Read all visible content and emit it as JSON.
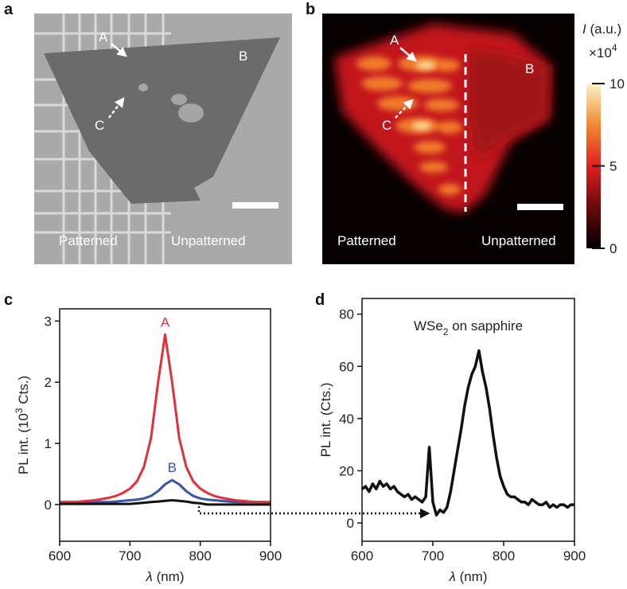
{
  "panel_a": {
    "label": "a",
    "points": [
      "A",
      "B",
      "C"
    ],
    "regions": [
      "Patterned",
      "Unpatterned"
    ]
  },
  "panel_b": {
    "label": "b",
    "points": [
      "A",
      "B",
      "C"
    ],
    "regions": [
      "Patterned",
      "Unpatterned"
    ],
    "colorbar": {
      "title_parts": [
        "I",
        " (a.u.)"
      ],
      "multiplier_parts": [
        "×10",
        "4"
      ],
      "lim": [
        0,
        10
      ],
      "ticks": [
        0,
        5,
        10
      ]
    }
  },
  "chart_data": [
    {
      "type": "line",
      "label": "c",
      "ylabel_parts": [
        "PL int. (10",
        "3",
        " Cts.)"
      ],
      "xlabel_parts": [
        "λ",
        " (nm)"
      ],
      "xlim": [
        600,
        900
      ],
      "xticks": [
        600,
        700,
        800,
        900
      ],
      "ylim": [
        -0.6,
        3.2
      ],
      "yticks": [
        0,
        1,
        2,
        3
      ],
      "x": [
        600,
        610,
        620,
        630,
        640,
        650,
        660,
        670,
        680,
        690,
        700,
        710,
        720,
        730,
        740,
        750,
        760,
        770,
        780,
        790,
        800,
        810,
        820,
        830,
        840,
        850,
        860,
        870,
        880,
        890,
        900
      ],
      "series": [
        {
          "name": "B",
          "color": "#3a55a8",
          "values": [
            0.04,
            0.04,
            0.04,
            0.04,
            0.04,
            0.04,
            0.04,
            0.04,
            0.05,
            0.06,
            0.07,
            0.08,
            0.1,
            0.14,
            0.22,
            0.33,
            0.4,
            0.33,
            0.22,
            0.14,
            0.1,
            0.08,
            0.07,
            0.06,
            0.05,
            0.04,
            0.04,
            0.04,
            0.04,
            0.04,
            0.04
          ]
        },
        {
          "name": "A",
          "color": "#e0303a",
          "values": [
            0.03,
            0.04,
            0.04,
            0.05,
            0.06,
            0.07,
            0.09,
            0.11,
            0.14,
            0.19,
            0.26,
            0.38,
            0.62,
            1.09,
            2.0,
            2.78,
            2.0,
            1.09,
            0.62,
            0.38,
            0.26,
            0.19,
            0.14,
            0.11,
            0.09,
            0.07,
            0.06,
            0.05,
            0.04,
            0.04,
            0.03
          ]
        },
        {
          "color": "#111111",
          "values": [
            0.01,
            0.01,
            0.01,
            0.01,
            0.01,
            0.01,
            0.01,
            0.01,
            0.01,
            0.01,
            0.01,
            0.02,
            0.03,
            0.04,
            0.05,
            0.06,
            0.07,
            0.06,
            0.05,
            0.03,
            0.02,
            0.0,
            0.0,
            0.0,
            0.0,
            0.0,
            0.0,
            0.0,
            0.0,
            0.0,
            0.0
          ]
        }
      ]
    },
    {
      "type": "line",
      "label": "d",
      "title_parts": [
        "WSe",
        "2",
        " on sapphire"
      ],
      "ylabel_parts": [
        "PL int. (Cts.)"
      ],
      "xlabel_parts": [
        "λ",
        " (nm)"
      ],
      "xlim": [
        600,
        900
      ],
      "xticks": [
        600,
        700,
        800,
        900
      ],
      "ylim": [
        -7,
        86
      ],
      "yticks": [
        0,
        20,
        40,
        60,
        80
      ],
      "x": [
        600,
        605,
        610,
        615,
        620,
        625,
        630,
        635,
        640,
        645,
        650,
        655,
        660,
        665,
        670,
        675,
        680,
        685,
        690,
        695,
        700,
        705,
        710,
        715,
        720,
        725,
        730,
        735,
        740,
        745,
        750,
        755,
        760,
        765,
        770,
        775,
        780,
        785,
        790,
        795,
        800,
        805,
        810,
        815,
        820,
        825,
        830,
        835,
        840,
        845,
        850,
        855,
        860,
        865,
        870,
        875,
        880,
        885,
        890,
        895,
        900
      ],
      "series": [
        {
          "color": "#111111",
          "values": [
            13,
            14,
            12,
            15,
            13,
            16,
            14,
            15,
            13,
            14,
            12,
            11,
            10,
            11,
            9,
            10,
            9,
            8,
            10,
            29,
            8,
            3,
            5,
            4,
            6,
            12,
            20,
            28,
            36,
            45,
            52,
            57,
            60,
            66,
            58,
            52,
            44,
            34,
            25,
            18,
            14,
            11,
            10,
            10,
            9,
            8,
            8,
            7,
            9,
            8,
            7,
            7,
            8,
            6,
            7,
            6,
            7,
            7,
            6,
            7,
            7
          ]
        }
      ]
    }
  ]
}
